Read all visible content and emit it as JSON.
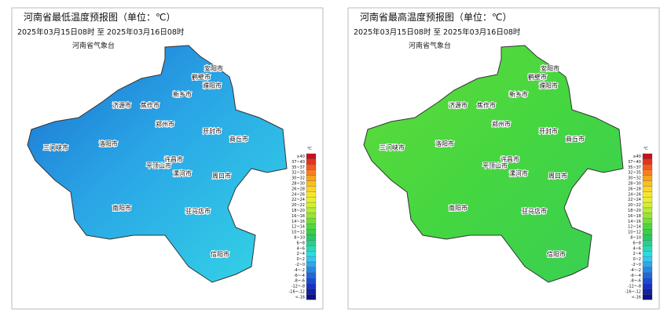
{
  "panels": [
    {
      "title": "河南省最低温度预报图（单位：℃）",
      "period": "2025年03月15日08时  至  2025年03月16日08时",
      "agency": "河南省气象台"
    },
    {
      "title": "河南省最高温度预报图（单位：℃）",
      "period": "2025年03月15日08时  至  2025年03月16日08时",
      "agency": "河南省气象台"
    }
  ],
  "cities": [
    "安阳市",
    "鹤壁市",
    "濮阳市",
    "新乡市",
    "焦作市",
    "济源市",
    "郑州市",
    "开封市",
    "商丘市",
    "洛阳市",
    "三门峡市",
    "平顶山市",
    "许昌市",
    "漯河市",
    "周口市",
    "南阳市",
    "驻马店市",
    "信阳市"
  ],
  "legend": {
    "unit": "℃",
    "items": [
      {
        "label": "≥40",
        "color": "#c8101a"
      },
      {
        "label": "37~40",
        "color": "#e8321e"
      },
      {
        "label": "35~37",
        "color": "#f45a1c"
      },
      {
        "label": "32~35",
        "color": "#f7801e"
      },
      {
        "label": "30~32",
        "color": "#f9a21f"
      },
      {
        "label": "28~30",
        "color": "#fbbe22"
      },
      {
        "label": "26~28",
        "color": "#fcd528"
      },
      {
        "label": "24~26",
        "color": "#f7e52c"
      },
      {
        "label": "22~24",
        "color": "#e9ef2e"
      },
      {
        "label": "20~22",
        "color": "#d2f032"
      },
      {
        "label": "18~20",
        "color": "#b7ec34"
      },
      {
        "label": "16~18",
        "color": "#96e636"
      },
      {
        "label": "14~16",
        "color": "#72df38"
      },
      {
        "label": "12~14",
        "color": "#4fd83c"
      },
      {
        "label": "10~12",
        "color": "#36d04a"
      },
      {
        "label": "8~10",
        "color": "#2cc862"
      },
      {
        "label": "6~8",
        "color": "#2ad08a"
      },
      {
        "label": "4~6",
        "color": "#2ad8b4"
      },
      {
        "label": "2~4",
        "color": "#2edbe0"
      },
      {
        "label": "0~2",
        "color": "#33c8ef"
      },
      {
        "label": "-2~0",
        "color": "#2ea7ec"
      },
      {
        "label": "-4~-2",
        "color": "#2787e4"
      },
      {
        "label": "-6~-4",
        "color": "#1f68da"
      },
      {
        "label": "-8~-6",
        "color": "#1a4ccf"
      },
      {
        "label": "-12~-8",
        "color": "#1634bf"
      },
      {
        "label": "-16~-12",
        "color": "#1020a8"
      },
      {
        "label": "<-16",
        "color": "#0a0f8a"
      }
    ]
  }
}
